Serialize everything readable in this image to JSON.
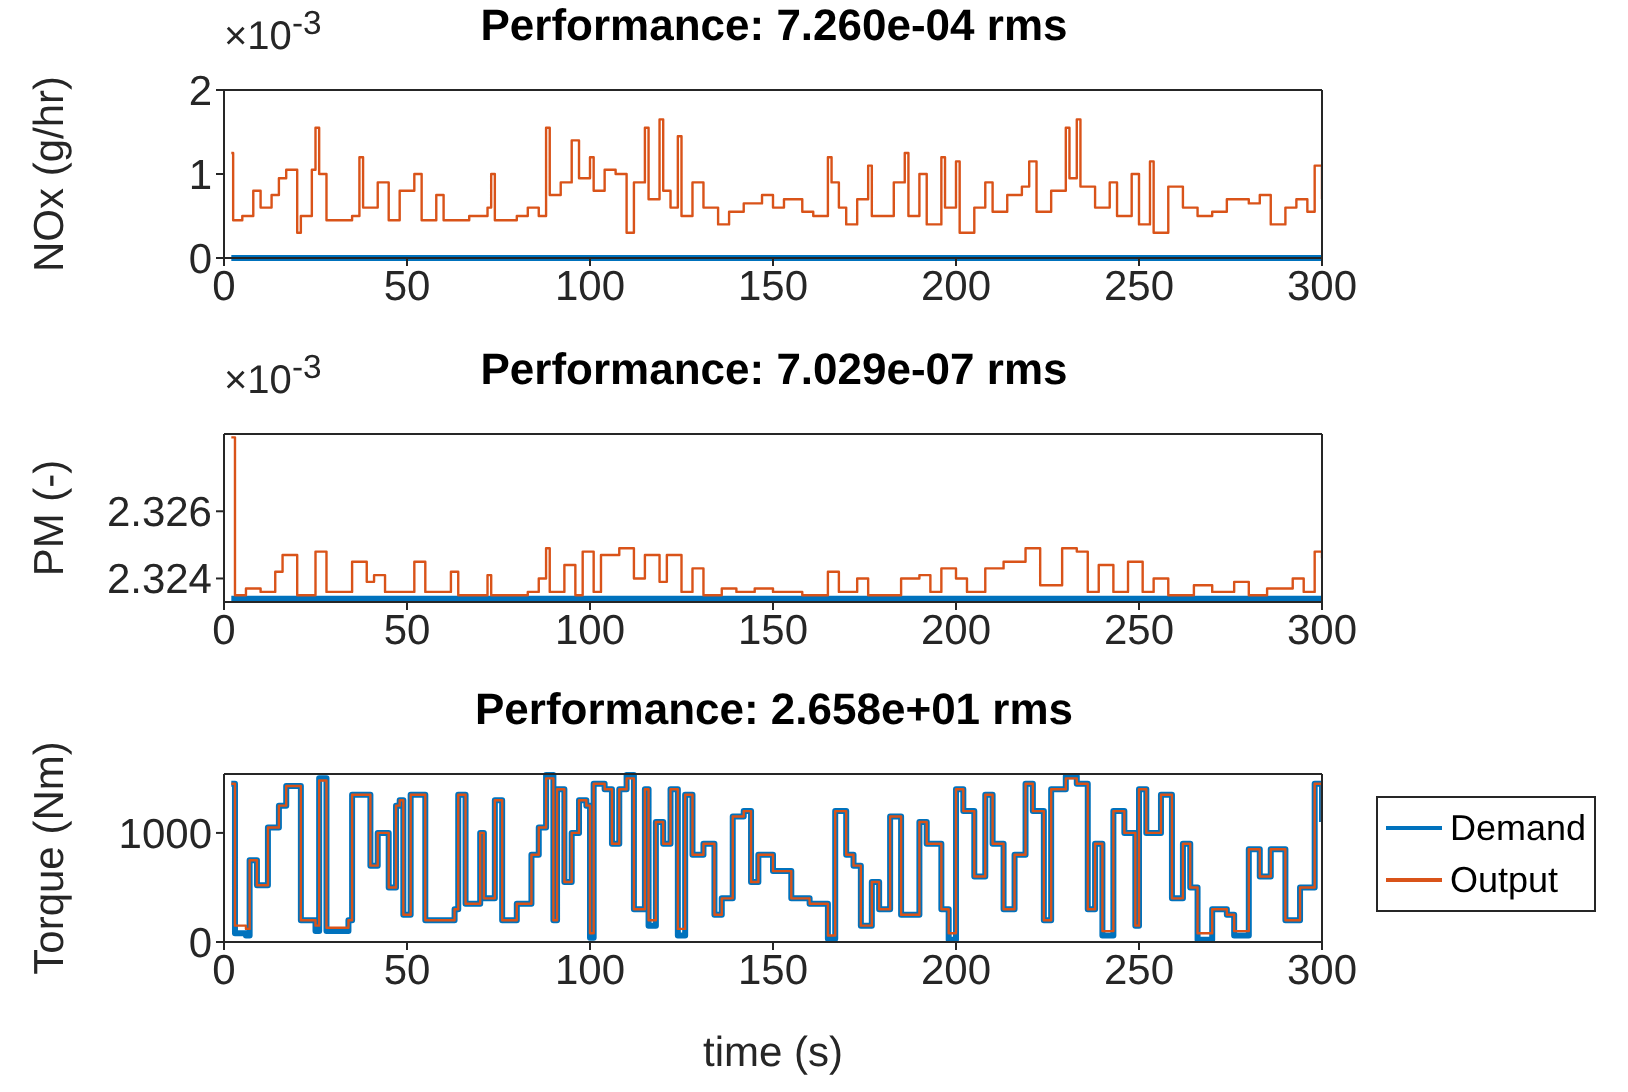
{
  "chart_data": [
    {
      "type": "step",
      "title": "Performance: 7.260e-04 rms",
      "ylabel": "NOx (g/hr)",
      "annotations": [
        "×10$^{-3}$"
      ],
      "xlim": [
        0,
        300
      ],
      "xticks": [
        0,
        50,
        100,
        150,
        200,
        250,
        300
      ],
      "ylim": [
        0,
        2
      ],
      "yticks": [
        0,
        1,
        2
      ],
      "series": [
        {
          "color": "#0072bd",
          "x": [
            2,
            300
          ],
          "values": [
            0,
            0
          ]
        },
        {
          "color": "#d95319",
          "x": [
            2,
            2.5,
            5,
            8,
            10,
            13,
            15,
            17,
            20,
            21,
            24,
            25,
            26,
            28,
            35,
            37,
            38,
            42,
            45,
            48,
            52,
            54,
            58,
            60,
            67,
            72,
            73,
            74,
            80,
            83,
            86,
            88,
            89,
            92,
            95,
            97,
            100,
            101,
            104,
            107,
            110,
            112,
            115,
            116,
            119,
            120,
            122,
            124,
            125,
            128,
            131,
            135,
            138,
            142,
            147,
            150,
            153,
            158,
            161,
            165,
            166,
            168,
            170,
            173,
            176,
            177,
            183,
            186,
            187,
            190,
            192,
            196,
            197,
            200,
            201,
            205,
            208,
            210,
            214,
            218,
            220,
            222,
            226,
            230,
            231,
            233,
            234,
            238,
            242,
            244,
            248,
            250,
            253,
            254,
            258,
            262,
            266,
            270,
            274,
            280,
            283,
            286,
            290,
            293,
            296,
            298,
            300
          ],
          "values": [
            1.25,
            0.45,
            0.5,
            0.8,
            0.6,
            0.75,
            0.95,
            1.05,
            0.3,
            0.5,
            1.05,
            1.55,
            1,
            0.45,
            0.5,
            1.2,
            0.6,
            0.9,
            0.45,
            0.8,
            1,
            0.45,
            0.75,
            0.45,
            0.5,
            0.6,
            1,
            0.45,
            0.5,
            0.6,
            0.5,
            1.55,
            0.75,
            0.9,
            1.4,
            0.95,
            1.2,
            0.8,
            1.05,
            1,
            0.3,
            0.9,
            1.55,
            0.7,
            1.65,
            0.8,
            0.6,
            1.45,
            0.5,
            0.9,
            0.6,
            0.4,
            0.55,
            0.65,
            0.75,
            0.6,
            0.7,
            0.55,
            0.5,
            1.2,
            0.9,
            0.6,
            0.4,
            0.7,
            1.1,
            0.5,
            0.9,
            1.25,
            0.5,
            1,
            0.4,
            1.2,
            0.6,
            1.15,
            0.3,
            0.6,
            0.9,
            0.55,
            0.75,
            0.85,
            1.15,
            0.55,
            0.8,
            1.55,
            0.95,
            1.65,
            0.85,
            0.6,
            0.9,
            0.5,
            1,
            0.4,
            1.15,
            0.3,
            0.85,
            0.6,
            0.5,
            0.55,
            0.7,
            0.65,
            0.75,
            0.4,
            0.6,
            0.7,
            0.55,
            1.1,
            0.7
          ]
        }
      ]
    },
    {
      "type": "step",
      "title": "Performance: 7.029e-07 rms",
      "ylabel": "PM (-)",
      "annotations": [
        "×10$^{-3}$"
      ],
      "xlim": [
        0,
        300
      ],
      "xticks": [
        0,
        50,
        100,
        150,
        200,
        250,
        300
      ],
      "ylim": [
        2.3233,
        2.3283
      ],
      "yticks": [
        2.324,
        2.326
      ],
      "series": [
        {
          "color": "#0072bd",
          "x": [
            2,
            300
          ],
          "values": [
            2.3234,
            2.3234
          ]
        },
        {
          "color": "#d95319",
          "x": [
            2,
            3,
            6,
            10,
            14,
            16,
            20,
            25,
            28,
            35,
            39,
            41,
            44,
            52,
            55,
            62,
            64,
            72,
            73,
            83,
            86,
            88,
            89,
            93,
            96,
            98,
            101,
            103,
            108,
            112,
            115,
            119,
            121,
            125,
            128,
            131,
            136,
            140,
            145,
            150,
            158,
            165,
            168,
            173,
            176,
            185,
            190,
            193,
            196,
            200,
            203,
            208,
            213,
            219,
            223,
            229,
            233,
            236,
            239,
            243,
            247,
            251,
            254,
            258,
            265,
            270,
            276,
            280,
            285,
            292,
            295,
            298,
            300
          ],
          "values": [
            2.3282,
            2.3235,
            2.3237,
            2.3236,
            2.3242,
            2.3247,
            2.3235,
            2.3248,
            2.3236,
            2.3245,
            2.3239,
            2.3241,
            2.3236,
            2.3245,
            2.3236,
            2.3242,
            2.3235,
            2.3241,
            2.3235,
            2.3236,
            2.324,
            2.3249,
            2.3236,
            2.3244,
            2.3235,
            2.3248,
            2.3236,
            2.3247,
            2.3249,
            2.324,
            2.3247,
            2.3239,
            2.3247,
            2.3236,
            2.3243,
            2.3235,
            2.3237,
            2.3236,
            2.3237,
            2.3236,
            2.3235,
            2.3242,
            2.3236,
            2.324,
            2.3235,
            2.324,
            2.3241,
            2.3236,
            2.3243,
            2.324,
            2.3236,
            2.3243,
            2.3245,
            2.3249,
            2.3238,
            2.3249,
            2.3248,
            2.3236,
            2.3244,
            2.3236,
            2.3245,
            2.3236,
            2.324,
            2.3235,
            2.3238,
            2.3236,
            2.3239,
            2.3235,
            2.3237,
            2.324,
            2.3236,
            2.3248,
            2.3246
          ]
        }
      ]
    },
    {
      "type": "step",
      "title": "Performance: 2.658e+01 rms",
      "xlabel": "time (s)",
      "ylabel": "Torque (Nm)",
      "legend": "right",
      "xlim": [
        0,
        300
      ],
      "xticks": [
        0,
        50,
        100,
        150,
        200,
        250,
        300
      ],
      "ylim": [
        0,
        1540
      ],
      "yticks": [
        0,
        1000
      ],
      "series": [
        {
          "name": "Demand",
          "color": "#0072bd",
          "x": [
            2,
            3,
            6,
            7,
            9,
            12,
            15,
            17,
            21,
            25,
            26,
            28,
            34,
            35,
            40,
            42,
            45,
            47,
            48,
            49,
            51,
            55,
            63,
            64,
            66,
            70,
            71,
            74,
            76,
            80,
            84,
            86,
            88,
            90,
            91,
            93,
            95,
            97,
            99,
            100,
            101,
            104,
            106,
            108,
            110,
            112,
            115,
            116,
            118,
            120,
            122,
            124,
            126,
            128,
            131,
            134,
            136,
            139,
            142,
            144,
            146,
            150,
            155,
            160,
            165,
            167,
            170,
            172,
            174,
            177,
            179,
            182,
            185,
            190,
            192,
            196,
            198,
            200,
            202,
            205,
            208,
            210,
            213,
            216,
            219,
            221,
            224,
            226,
            230,
            233,
            236,
            238,
            240,
            243,
            246,
            249,
            250,
            252,
            256,
            259,
            262,
            264,
            266,
            270,
            274,
            276,
            280,
            283,
            286,
            290,
            294,
            298,
            300
          ],
          "values": [
            1450,
            80,
            60,
            750,
            520,
            1050,
            1250,
            1430,
            200,
            100,
            1500,
            100,
            200,
            1350,
            700,
            1000,
            500,
            1250,
            1300,
            250,
            1350,
            200,
            300,
            1350,
            350,
            1000,
            400,
            1300,
            200,
            350,
            800,
            1050,
            1530,
            200,
            1400,
            550,
            1000,
            1300,
            1250,
            40,
            1450,
            1400,
            900,
            1400,
            1530,
            300,
            1400,
            150,
            1100,
            900,
            1400,
            60,
            1350,
            800,
            900,
            250,
            400,
            1150,
            1200,
            550,
            800,
            650,
            400,
            350,
            30,
            1200,
            800,
            700,
            150,
            550,
            300,
            1150,
            250,
            1100,
            900,
            300,
            20,
            1400,
            1200,
            600,
            1350,
            900,
            300,
            800,
            1450,
            1200,
            200,
            1400,
            1520,
            1450,
            300,
            900,
            60,
            1200,
            1000,
            150,
            1400,
            1000,
            1350,
            400,
            900,
            500,
            20,
            300,
            250,
            60,
            850,
            600,
            850,
            200,
            500,
            1450,
            1100
          ]
        },
        {
          "name": "Output",
          "color": "#d95319",
          "x": [
            2,
            3,
            6,
            7,
            9,
            12,
            15,
            17,
            21,
            25,
            26,
            28,
            34,
            35,
            40,
            42,
            45,
            47,
            48,
            49,
            51,
            55,
            63,
            64,
            66,
            70,
            71,
            74,
            76,
            80,
            84,
            86,
            88,
            90,
            91,
            93,
            95,
            97,
            99,
            100,
            101,
            104,
            106,
            108,
            110,
            112,
            115,
            116,
            118,
            120,
            122,
            124,
            126,
            128,
            131,
            134,
            136,
            139,
            142,
            144,
            146,
            150,
            155,
            160,
            165,
            167,
            170,
            172,
            174,
            177,
            179,
            182,
            185,
            190,
            192,
            196,
            198,
            200,
            202,
            205,
            208,
            210,
            213,
            216,
            219,
            221,
            224,
            226,
            230,
            233,
            236,
            238,
            240,
            243,
            246,
            249,
            250,
            252,
            256,
            259,
            262,
            264,
            266,
            270,
            274,
            276,
            280,
            283,
            286,
            290,
            294,
            298,
            300
          ],
          "values": [
            1450,
            150,
            120,
            750,
            520,
            1050,
            1250,
            1430,
            200,
            150,
            1480,
            130,
            200,
            1350,
            700,
            1000,
            500,
            1250,
            1300,
            250,
            1350,
            200,
            300,
            1350,
            350,
            1000,
            400,
            1300,
            200,
            350,
            800,
            1050,
            1500,
            200,
            1400,
            550,
            1000,
            1300,
            1250,
            80,
            1450,
            1400,
            900,
            1400,
            1500,
            300,
            1400,
            200,
            1100,
            900,
            1400,
            120,
            1350,
            800,
            900,
            250,
            400,
            1150,
            1200,
            550,
            800,
            650,
            400,
            350,
            60,
            1200,
            800,
            700,
            150,
            550,
            300,
            1150,
            250,
            1100,
            900,
            300,
            80,
            1400,
            1200,
            600,
            1350,
            900,
            300,
            800,
            1450,
            1200,
            200,
            1400,
            1500,
            1450,
            300,
            900,
            100,
            1200,
            1000,
            150,
            1400,
            1000,
            1350,
            400,
            900,
            500,
            80,
            300,
            250,
            100,
            850,
            600,
            850,
            200,
            500,
            1450,
            1100
          ]
        }
      ]
    }
  ]
}
